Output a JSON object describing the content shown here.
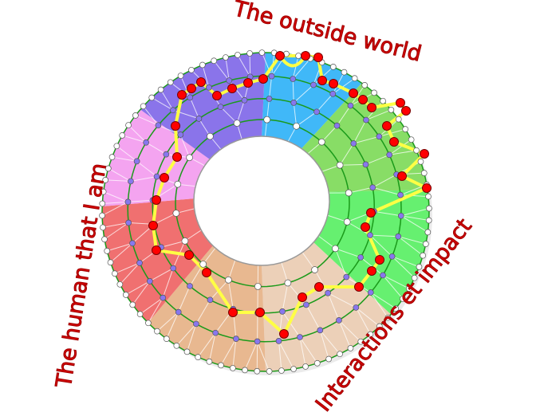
{
  "labels": {
    "top": "The outside world",
    "left": "The human that I am",
    "right": "Interactions et impact"
  },
  "colors": {
    "text": "#d40000",
    "ring_line": "#1a9a1a",
    "path": "#ffff44",
    "key_node": "#ff0000",
    "mid_node": "#8877ee",
    "plain_node": "#ffffff"
  },
  "sectors": [
    {
      "color": "#40b8f8"
    },
    {
      "color": "#88dd66"
    },
    {
      "color": "#66f070"
    },
    {
      "color": "#ecd0b8"
    },
    {
      "color": "#e8b890"
    },
    {
      "color": "#f07070"
    },
    {
      "color": "#f4a4f0"
    },
    {
      "color": "#8a74ea"
    }
  ]
}
